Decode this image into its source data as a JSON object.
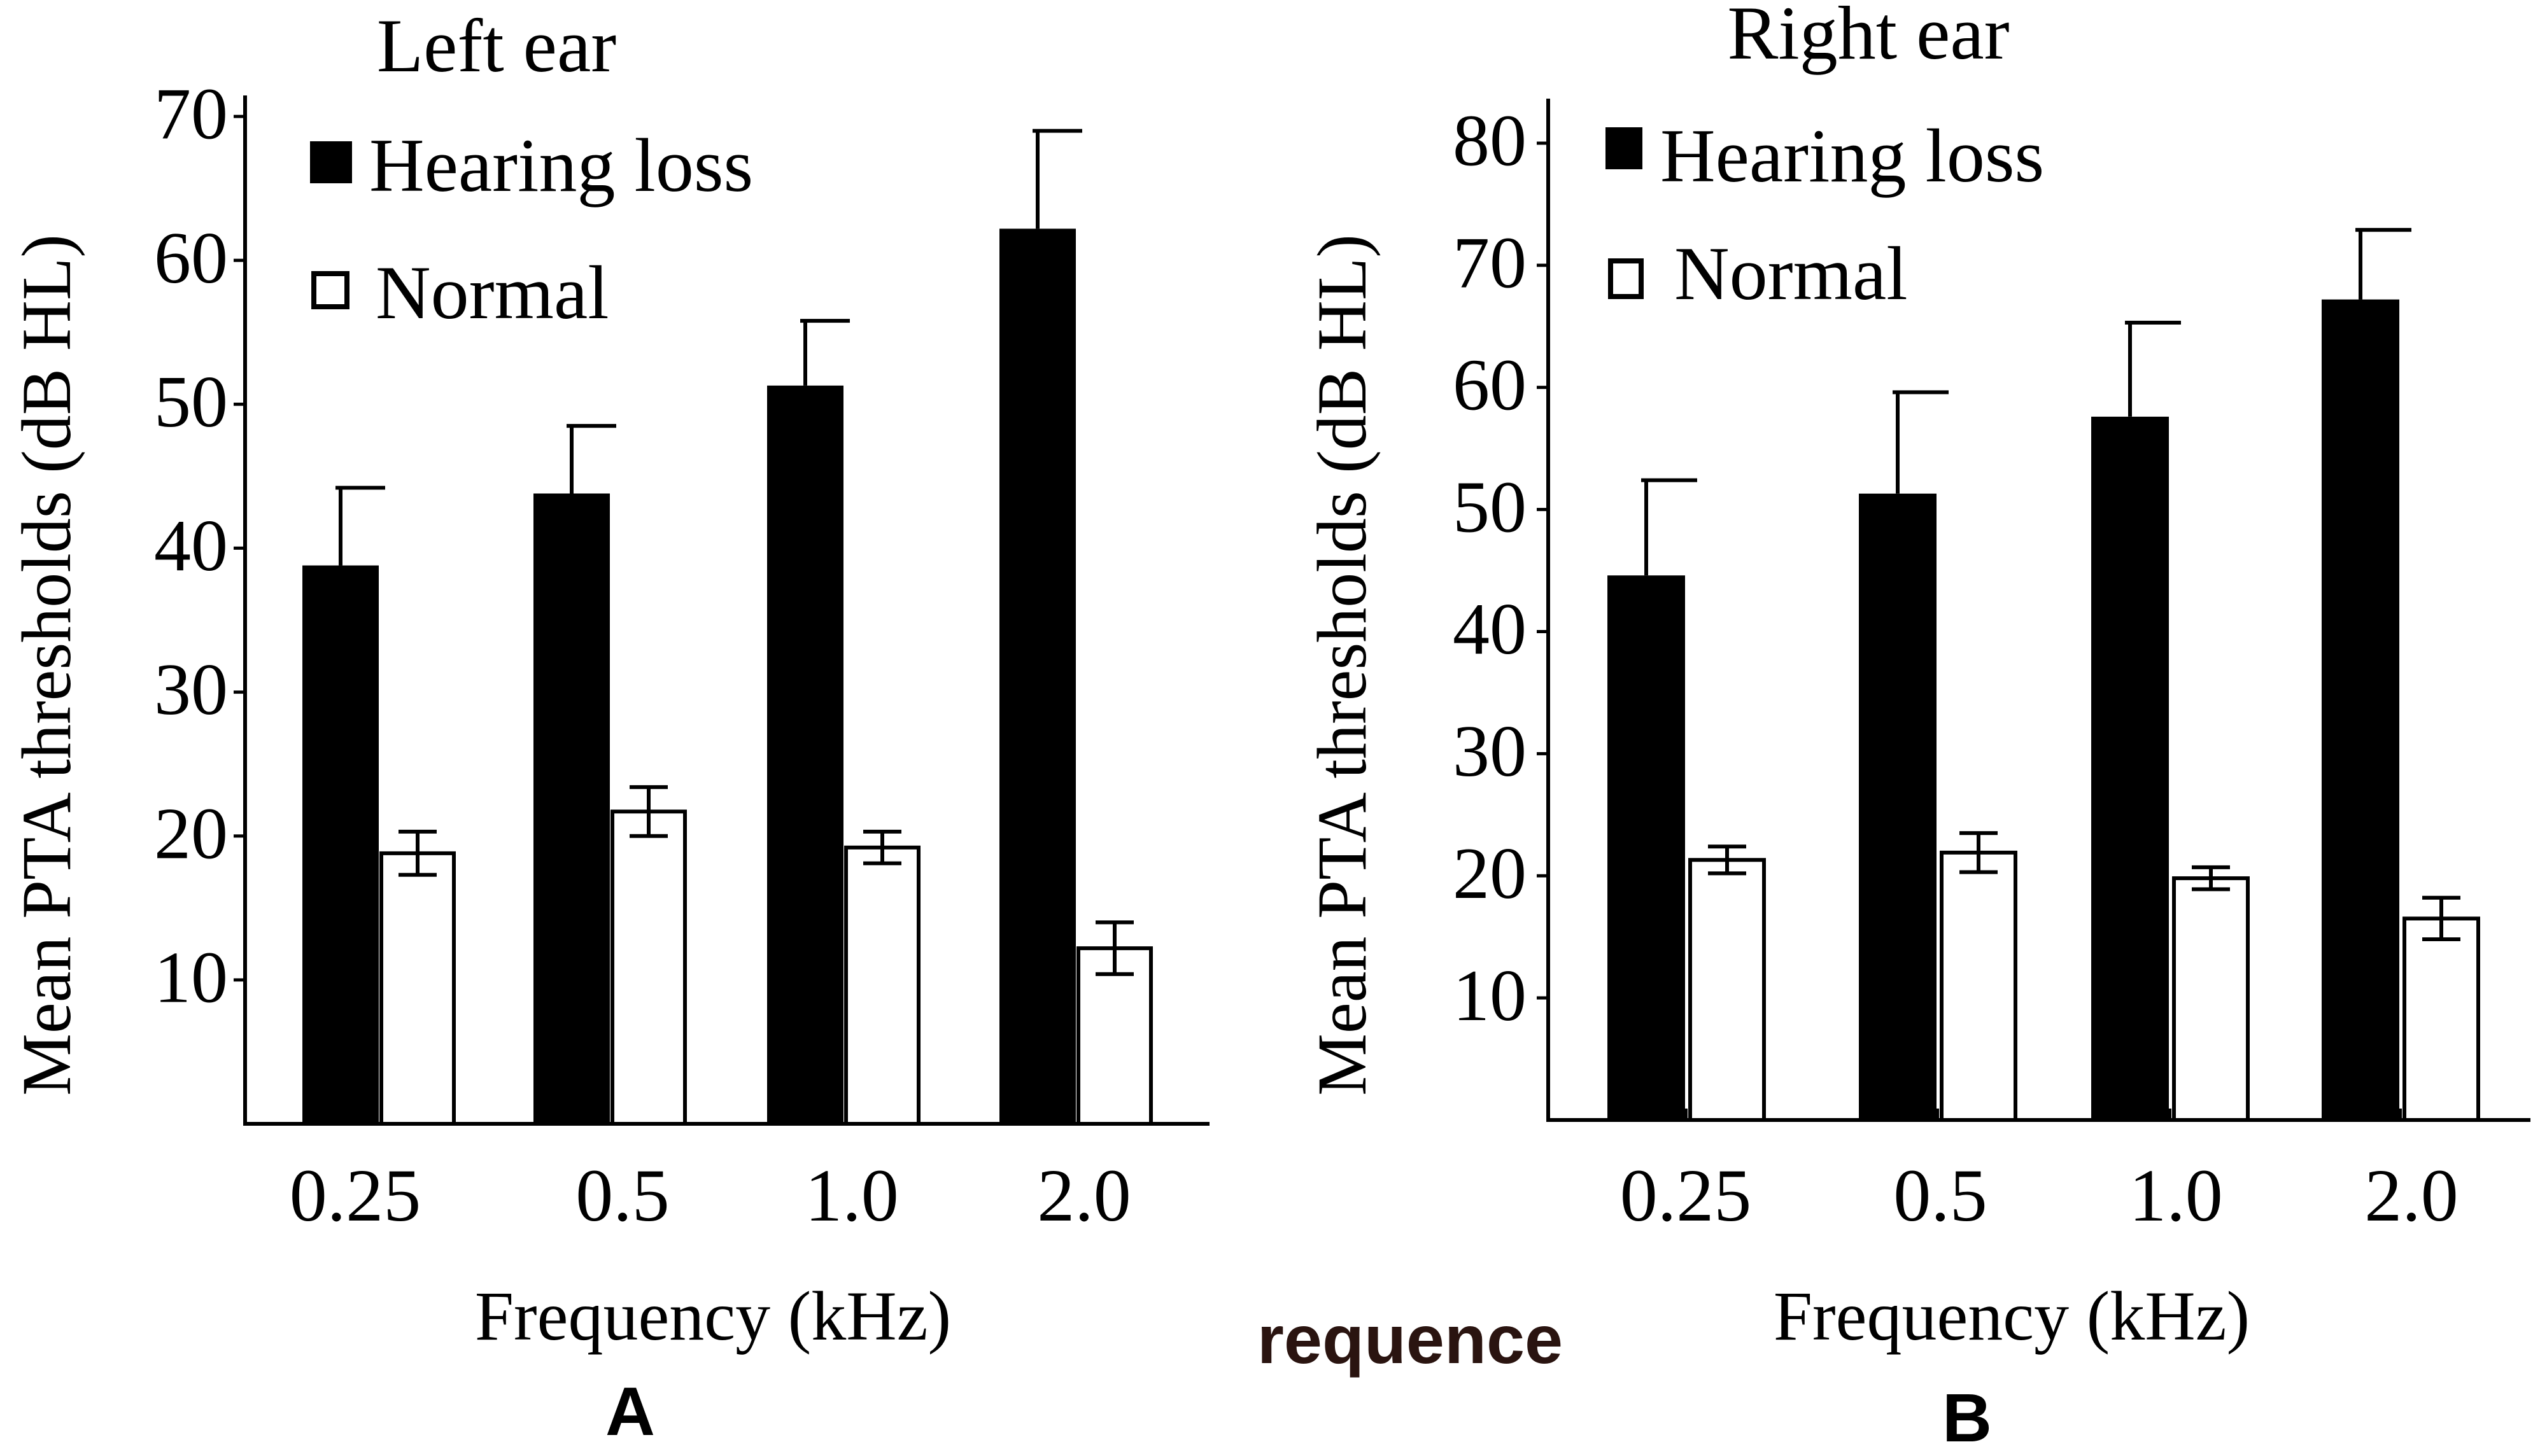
{
  "figure": {
    "stray_text": "requence"
  },
  "chart_data": [
    {
      "panel": "A",
      "type": "bar",
      "title": "Left ear",
      "xlabel": "Frequency (kHz)",
      "ylabel": "Mean PTA thresholds (dB HL)",
      "ylim": [
        0,
        70
      ],
      "yticks": [
        "10",
        "20",
        "30",
        "40",
        "50",
        "60",
        "70"
      ],
      "categories": [
        "0.25",
        "0.5",
        "1.0",
        "2.0"
      ],
      "series": [
        {
          "name": "Hearing loss",
          "fill": "#000000",
          "values": [
            38.8,
            43.8,
            51.3,
            62.2
          ],
          "errors": [
            5.4,
            4.7,
            4.5,
            6.8
          ]
        },
        {
          "name": "Normal",
          "fill": "#ffffff",
          "values": [
            18.8,
            21.7,
            19.2,
            12.2
          ],
          "errors": [
            1.5,
            1.7,
            1.1,
            1.8
          ]
        }
      ],
      "legend_position": "top-left"
    },
    {
      "panel": "B",
      "type": "bar",
      "title": "Right ear",
      "xlabel": "Frequency (kHz)",
      "ylabel": "Mean PTA thresholds (dB HL)",
      "ylim": [
        0,
        80
      ],
      "yticks": [
        "10",
        "20",
        "30",
        "40",
        "50",
        "60",
        "70",
        "80"
      ],
      "categories": [
        "0.25",
        "0.5",
        "1.0",
        "2.0"
      ],
      "series": [
        {
          "name": "Hearing loss",
          "fill": "#000000",
          "values": [
            44.6,
            51.3,
            57.6,
            67.2
          ],
          "errors": [
            7.8,
            8.3,
            7.7,
            5.7
          ]
        },
        {
          "name": "Normal",
          "fill": "#ffffff",
          "values": [
            21.3,
            21.9,
            19.8,
            16.5
          ],
          "errors": [
            1.1,
            1.6,
            0.9,
            1.7
          ]
        }
      ],
      "legend_position": "top-left"
    }
  ]
}
